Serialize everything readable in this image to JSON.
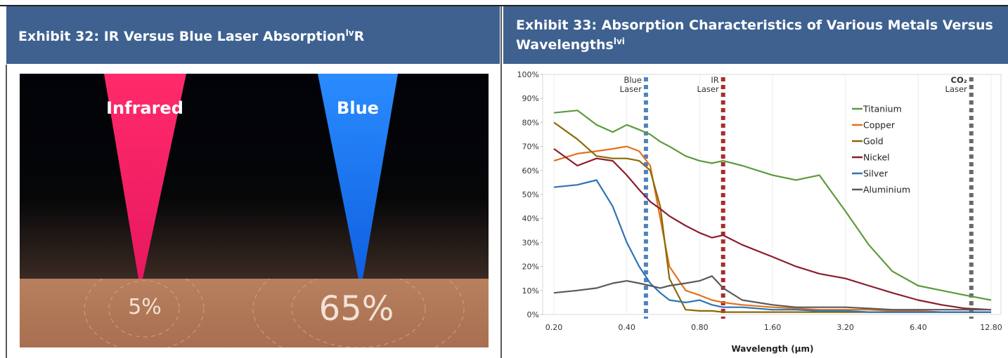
{
  "exhibit_32": {
    "title": "Exhibit 32: IR Versus Blue Laser Absorption",
    "superscript": "lv",
    "suffix": "R",
    "image": {
      "beam_labels": [
        "Infrared",
        "Blue"
      ],
      "absorption_labels": [
        "5%",
        "65%"
      ]
    }
  },
  "exhibit_33": {
    "title": "Exhibit 33: Absorption Characteristics of Various Metals Versus Wavelengths",
    "superscript": "lvi"
  },
  "chart_data": {
    "type": "line",
    "x_label": "Wavelength (µm)",
    "xscale": "log",
    "xlim": [
      0.2,
      12.8
    ],
    "xticks": [
      {
        "value": 0.2,
        "label": "0.20"
      },
      {
        "value": 0.4,
        "label": "0.40"
      },
      {
        "value": 0.8,
        "label": "0.80"
      },
      {
        "value": 1.6,
        "label": "1.60"
      },
      {
        "value": 3.2,
        "label": "3.20"
      },
      {
        "value": 6.4,
        "label": "6.40"
      },
      {
        "value": 12.8,
        "label": "12.80"
      }
    ],
    "ylim": [
      0,
      100
    ],
    "yticks": [
      {
        "value": 0,
        "label": "0%"
      },
      {
        "value": 10,
        "label": "10%"
      },
      {
        "value": 20,
        "label": "20%"
      },
      {
        "value": 30,
        "label": "30%"
      },
      {
        "value": 40,
        "label": "40%"
      },
      {
        "value": 50,
        "label": "50%"
      },
      {
        "value": 60,
        "label": "60%"
      },
      {
        "value": 70,
        "label": "70%"
      },
      {
        "value": 80,
        "label": "80%"
      },
      {
        "value": 90,
        "label": "90%"
      },
      {
        "value": 100,
        "label": "100%"
      }
    ],
    "grid": true,
    "x": [
      0.2,
      0.25,
      0.3,
      0.35,
      0.4,
      0.45,
      0.5,
      0.55,
      0.6,
      0.7,
      0.8,
      0.9,
      1.0,
      1.2,
      1.6,
      2.0,
      2.5,
      3.2,
      4,
      5,
      6.4,
      8,
      10,
      12.8
    ],
    "series": [
      {
        "name": "Titanium",
        "color": "#5b9b3b",
        "values": [
          84,
          85,
          79,
          76,
          79,
          77,
          75,
          72,
          70,
          66,
          64,
          63,
          64,
          62,
          58,
          56,
          58,
          43,
          29,
          18,
          12,
          10,
          8,
          6
        ]
      },
      {
        "name": "Copper",
        "color": "#e2711d",
        "values": [
          64,
          67,
          68,
          69,
          70,
          68,
          62,
          40,
          20,
          10,
          8,
          6,
          5,
          4,
          3,
          2.5,
          2,
          2,
          2,
          1.5,
          1.5,
          1,
          1,
          1
        ]
      },
      {
        "name": "Gold",
        "color": "#8a6a04",
        "values": [
          80,
          73,
          66,
          65,
          65,
          64,
          60,
          45,
          15,
          2,
          1.5,
          1.5,
          1,
          1,
          1,
          1,
          1,
          1,
          1,
          1,
          1,
          1,
          1,
          1
        ]
      },
      {
        "name": "Nickel",
        "color": "#8c1c2c",
        "values": [
          69,
          62,
          65,
          64,
          58,
          52,
          47,
          44,
          41,
          37,
          34,
          32,
          33,
          29,
          24,
          20,
          17,
          15,
          12,
          9,
          6,
          4,
          2.5,
          2
        ]
      },
      {
        "name": "Silver",
        "color": "#2e74b5",
        "values": [
          53,
          54,
          56,
          45,
          30,
          20,
          13,
          9,
          6,
          5,
          6,
          4,
          3,
          3,
          2,
          2,
          1.5,
          1.5,
          1,
          1,
          1,
          1,
          1,
          1
        ]
      },
      {
        "name": "Aluminium",
        "color": "#5a5a5a",
        "values": [
          9,
          10,
          11,
          13,
          14,
          13,
          12,
          11,
          12,
          13,
          14,
          16,
          11,
          6,
          4,
          3,
          3,
          3,
          2.5,
          2,
          2,
          2,
          2,
          2
        ]
      }
    ],
    "lasers": [
      {
        "label": [
          "Blue",
          "Laser"
        ],
        "x": 0.48,
        "color": "#4f83bd"
      },
      {
        "label": [
          "IR",
          "Laser"
        ],
        "x": 1.0,
        "color": "#a82c2c"
      },
      {
        "label": [
          "CO₂",
          "Laser"
        ],
        "x": 10.6,
        "color": "#6a6a6a"
      }
    ]
  }
}
